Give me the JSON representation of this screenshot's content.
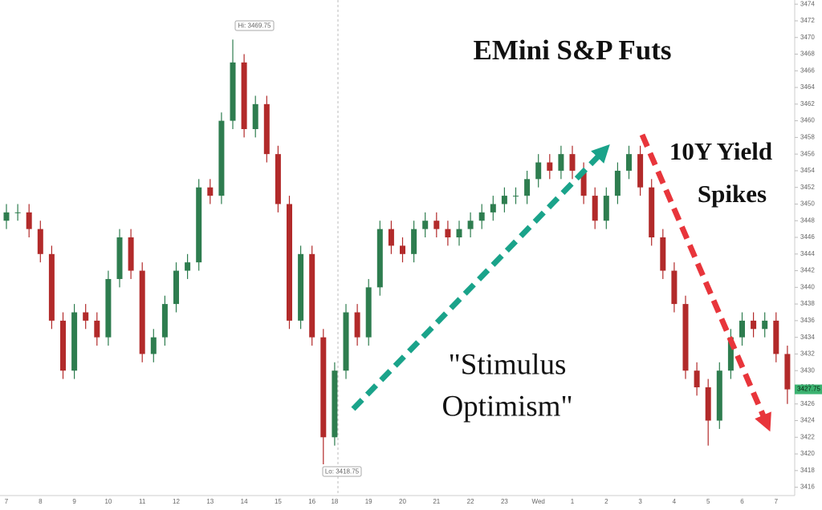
{
  "chart_data": {
    "type": "candlestick",
    "title": "EMini S&P Futs",
    "annotations": {
      "yield": [
        "10Y Yield",
        "Spikes"
      ],
      "stimulus": [
        "\"Stimulus",
        "Optimism\""
      ],
      "hi_label": "Hi: 3469.75",
      "lo_label": "Lo: 3418.75",
      "last_price": 3427.75
    },
    "categories": [
      "7",
      null,
      null,
      "8",
      null,
      null,
      "9",
      null,
      null,
      "10",
      null,
      null,
      "11",
      null,
      null,
      "12",
      null,
      null,
      "13",
      null,
      null,
      "14",
      null,
      null,
      "15",
      null,
      null,
      "16",
      null,
      "18",
      null,
      null,
      "19",
      null,
      null,
      "20",
      null,
      null,
      "21",
      null,
      null,
      "22",
      null,
      null,
      "23",
      null,
      null,
      "Wed",
      null,
      null,
      "1",
      null,
      null,
      "2",
      null,
      null,
      "3",
      null,
      null,
      "4",
      null,
      null,
      "5",
      null,
      null,
      "6",
      null,
      null,
      "7",
      null
    ],
    "open": [
      3448,
      3449,
      3449,
      3447,
      3444,
      3436,
      3430,
      3437,
      3436,
      3434,
      3441,
      3446,
      3442,
      3432,
      3434,
      3438,
      3442,
      3443,
      3452,
      3451,
      3460,
      3467,
      3459,
      3462,
      3456,
      3450,
      3436,
      3444,
      3434,
      3422,
      3430,
      3437,
      3434,
      3440,
      3447,
      3445,
      3444,
      3447,
      3448,
      3447,
      3446,
      3447,
      3448,
      3449,
      3450,
      3451,
      3451,
      3453,
      3455,
      3454,
      3456,
      3454,
      3451,
      3448,
      3451,
      3454,
      3456,
      3452,
      3446,
      3442,
      3438,
      3430,
      3428,
      3424,
      3430,
      3434,
      3436,
      3435,
      3436,
      3432
    ],
    "high": [
      3450,
      3450,
      3450,
      3448,
      3445,
      3437,
      3438,
      3438,
      3437,
      3442,
      3447,
      3447,
      3443,
      3435,
      3439,
      3443,
      3444,
      3453,
      3453,
      3461,
      3469.75,
      3468,
      3463,
      3463,
      3457,
      3451,
      3445,
      3445,
      3435,
      3431,
      3438,
      3438,
      3441,
      3448,
      3448,
      3446,
      3448,
      3449,
      3449,
      3448,
      3448,
      3449,
      3450,
      3451,
      3452,
      3452,
      3454,
      3456,
      3456,
      3457,
      3457,
      3455,
      3452,
      3452,
      3455,
      3457,
      3457,
      3453,
      3447,
      3443,
      3439,
      3431,
      3429,
      3431,
      3435,
      3437,
      3437,
      3437,
      3437,
      3433
    ],
    "low": [
      3447,
      3448,
      3446,
      3443,
      3435,
      3429,
      3429,
      3435,
      3433,
      3433,
      3440,
      3441,
      3431,
      3431,
      3433,
      3437,
      3441,
      3442,
      3450,
      3450,
      3459,
      3458,
      3458,
      3455,
      3449,
      3435,
      3435,
      3433,
      3418.75,
      3421,
      3429,
      3433,
      3433,
      3439,
      3444,
      3443,
      3443,
      3446,
      3446,
      3445,
      3445,
      3446,
      3447,
      3448,
      3449,
      3450,
      3450,
      3452,
      3453,
      3453,
      3453,
      3450,
      3447,
      3447,
      3450,
      3453,
      3451,
      3445,
      3441,
      3437,
      3429,
      3427,
      3421,
      3423,
      3429,
      3433,
      3434,
      3434,
      3431,
      3426
    ],
    "close": [
      3449,
      3449,
      3447,
      3444,
      3436,
      3430,
      3437,
      3436,
      3434,
      3441,
      3446,
      3442,
      3432,
      3434,
      3438,
      3442,
      3443,
      3452,
      3451,
      3460,
      3467,
      3459,
      3462,
      3456,
      3450,
      3436,
      3444,
      3434,
      3422,
      3430,
      3437,
      3434,
      3440,
      3447,
      3445,
      3444,
      3447,
      3448,
      3447,
      3446,
      3447,
      3448,
      3449,
      3450,
      3451,
      3451,
      3453,
      3455,
      3454,
      3456,
      3454,
      3451,
      3448,
      3451,
      3454,
      3456,
      3452,
      3446,
      3442,
      3438,
      3430,
      3428,
      3424,
      3430,
      3434,
      3436,
      3435,
      3436,
      3432,
      3427.75
    ],
    "up_color": "#2e7d4f",
    "down_color": "#b22a2a",
    "ylim": [
      3415,
      3474.5
    ],
    "yticks": [
      3416,
      3418,
      3420,
      3422,
      3424,
      3426,
      3428,
      3430,
      3432,
      3434,
      3436,
      3438,
      3440,
      3442,
      3444,
      3446,
      3448,
      3450,
      3452,
      3454,
      3456,
      3458,
      3460,
      3462,
      3464,
      3466,
      3468,
      3470,
      3472,
      3474
    ]
  }
}
